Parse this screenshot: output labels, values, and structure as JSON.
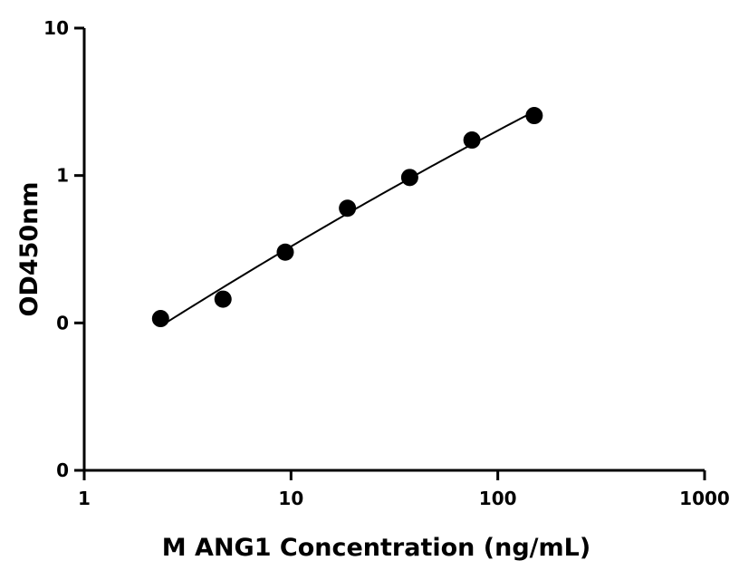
{
  "chart_data": {
    "type": "scatter",
    "title": "",
    "xlabel": "M ANG1 Concentration (ng/mL)",
    "ylabel": "OD450nm",
    "x_scale": "log",
    "y_scale": "log",
    "xlim": [
      1,
      1000
    ],
    "ylim": [
      0.01,
      10
    ],
    "x_ticks": [
      {
        "value": 1,
        "label": "1"
      },
      {
        "value": 10,
        "label": "10"
      },
      {
        "value": 100,
        "label": "100"
      },
      {
        "value": 1000,
        "label": "1000"
      }
    ],
    "y_ticks": [
      {
        "value": 0.01,
        "label": "0"
      },
      {
        "value": 0.1,
        "label": "0"
      },
      {
        "value": 1,
        "label": "1"
      },
      {
        "value": 10,
        "label": "10"
      }
    ],
    "grid": false,
    "legend": "none",
    "series": [
      {
        "x": [
          2.34,
          4.69,
          9.38,
          18.75,
          37.5,
          75,
          150
        ],
        "y": [
          0.107,
          0.145,
          0.302,
          0.6,
          0.97,
          1.74,
          2.55
        ],
        "marker": "circle",
        "color": "#000000",
        "fit_curve": true
      }
    ]
  }
}
